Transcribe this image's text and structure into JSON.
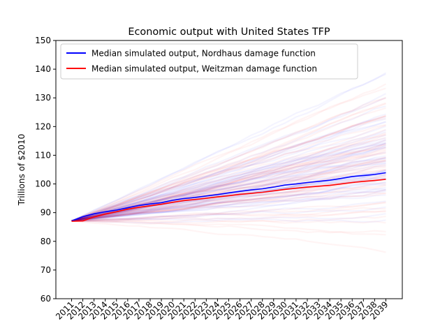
{
  "chart_data": {
    "type": "line",
    "title": "Economic output with United States TFP",
    "xlabel": "",
    "ylabel": "Trillions of $2010",
    "ylim": [
      60,
      150
    ],
    "yticks": [
      60,
      70,
      80,
      90,
      100,
      110,
      120,
      130,
      140,
      150
    ],
    "x": [
      2011,
      2012,
      2013,
      2014,
      2015,
      2016,
      2017,
      2018,
      2019,
      2020,
      2021,
      2022,
      2023,
      2024,
      2025,
      2026,
      2027,
      2028,
      2029,
      2030,
      2031,
      2032,
      2033,
      2034,
      2035,
      2036,
      2037,
      2038,
      2039
    ],
    "x_tick_labels": [
      "2011",
      "2012",
      "2013",
      "2014",
      "2015",
      "2016",
      "2017",
      "2018",
      "2019",
      "2020",
      "2021",
      "2022",
      "2023",
      "2024",
      "2025",
      "2026",
      "2027",
      "2028",
      "2029",
      "2030",
      "2031",
      "2032",
      "2033",
      "2034",
      "2035",
      "2036",
      "2037",
      "2038",
      "2039"
    ],
    "grid": false,
    "legend_position": "top-left",
    "series": [
      {
        "name": "Median simulated output, Nordhaus damage function",
        "color": "#0000ff",
        "values": [
          87.1,
          88.6,
          89.6,
          90.3,
          90.9,
          91.7,
          92.5,
          93.0,
          93.5,
          94.3,
          94.9,
          95.3,
          95.8,
          96.3,
          96.9,
          97.4,
          97.9,
          98.3,
          98.9,
          99.6,
          100.0,
          100.5,
          100.9,
          101.3,
          101.9,
          102.6,
          102.9,
          103.3,
          103.9
        ]
      },
      {
        "name": "Median simulated output, Weitzman damage function",
        "color": "#ff0000",
        "values": [
          87.0,
          87.1,
          88.5,
          89.5,
          90.3,
          91.2,
          91.9,
          92.4,
          92.9,
          93.6,
          94.2,
          94.6,
          95.0,
          95.5,
          95.9,
          96.4,
          96.7,
          97.1,
          97.6,
          98.1,
          98.5,
          98.9,
          99.2,
          99.5,
          100.0,
          100.5,
          100.9,
          101.2,
          101.6
        ]
      }
    ],
    "simulation_band": {
      "colors": [
        "#0000ff",
        "#ff0000"
      ],
      "low_2039": 78,
      "high_2039": 140
    }
  }
}
